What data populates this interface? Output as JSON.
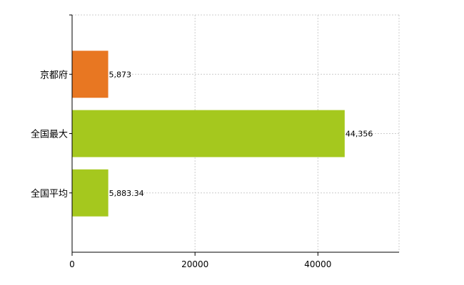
{
  "chart_data": {
    "type": "bar",
    "orientation": "horizontal",
    "categories": [
      "京都府",
      "全国最大",
      "全国平均"
    ],
    "values": [
      5873,
      44356,
      5883.34
    ],
    "value_labels": [
      "5,873",
      "44,356",
      "5,883.34"
    ],
    "colors": [
      "#e87722",
      "#a5c81e",
      "#a5c81e"
    ],
    "title": "",
    "xlabel": "",
    "ylabel": "",
    "xlim": [
      0,
      53200
    ],
    "x_ticks": [
      0,
      20000,
      40000
    ],
    "x_tick_labels": [
      "0",
      "20000",
      "40000"
    ],
    "grid": true,
    "legend": "none"
  }
}
